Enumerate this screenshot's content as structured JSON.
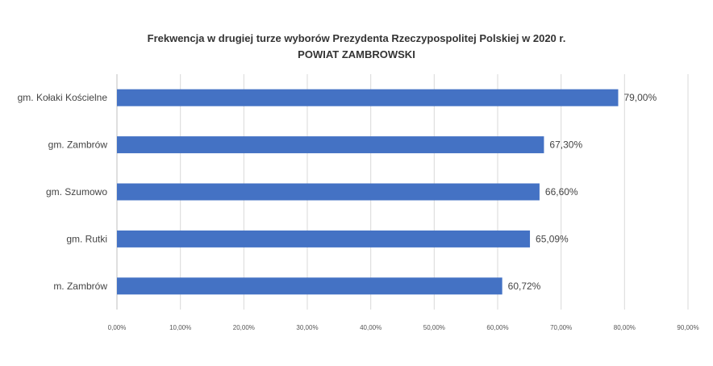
{
  "chart_data": {
    "type": "bar",
    "orientation": "horizontal",
    "title": "Frekwencja w drugiej turze wyborów Prezydenta Rzeczypospolitej Polskiej w 2020 r.",
    "subtitle": "POWIAT ZAMBROWSKI",
    "categories": [
      "gm. Kołaki Kościelne",
      "gm. Zambrów",
      "gm. Szumowo",
      "gm. Rutki",
      "m. Zambrów"
    ],
    "values": [
      79.0,
      67.3,
      66.6,
      65.09,
      60.72
    ],
    "value_labels": [
      "79,00%",
      "67,30%",
      "66,60%",
      "65,09%",
      "60,72%"
    ],
    "xticks": [
      0,
      10,
      20,
      30,
      40,
      50,
      60,
      70,
      80,
      90
    ],
    "xtick_labels": [
      "0,00%",
      "10,00%",
      "20,00%",
      "30,00%",
      "40,00%",
      "50,00%",
      "60,00%",
      "70,00%",
      "80,00%",
      "90,00%"
    ],
    "xlim": [
      0,
      90
    ],
    "xlabel": "",
    "ylabel": "",
    "grid": true,
    "bar_color": "#4472C4",
    "grid_color": "#D9D9D9"
  }
}
